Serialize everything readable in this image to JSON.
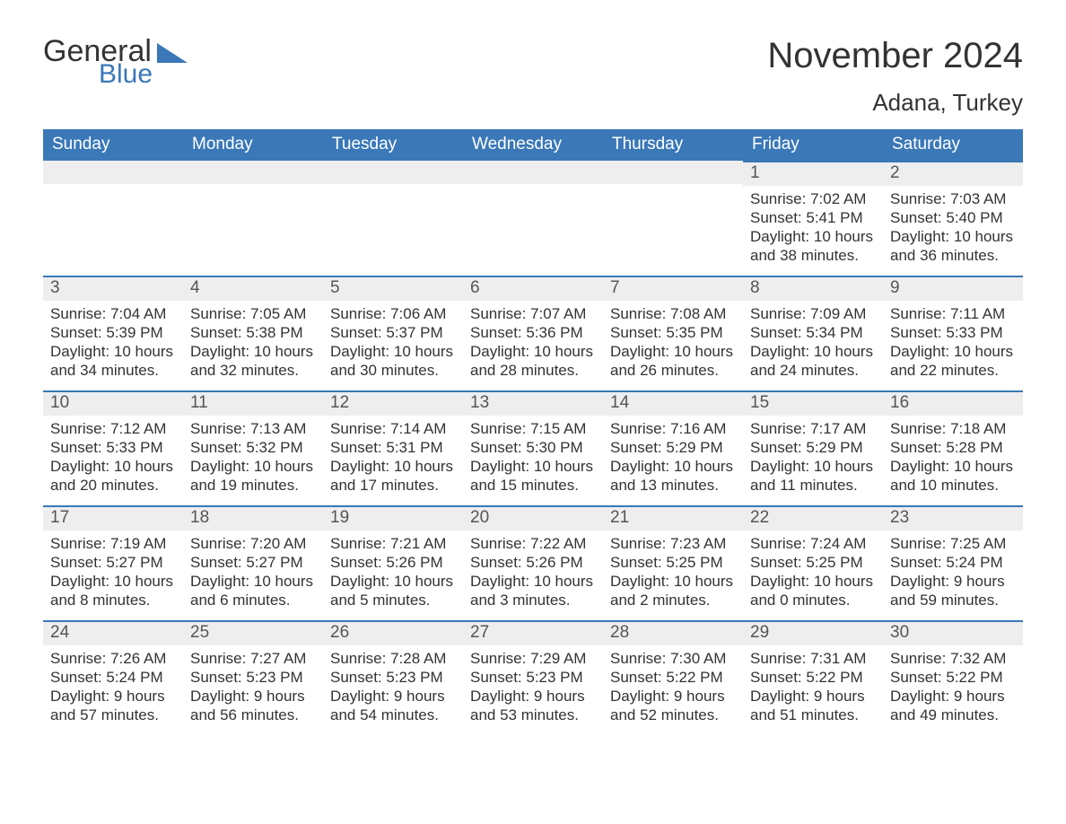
{
  "logo": {
    "word1": "General",
    "word2": "Blue"
  },
  "header": {
    "month_title": "November 2024",
    "location": "Adana, Turkey"
  },
  "colors": {
    "accent": "#3a78b8",
    "header_text": "#ffffff",
    "daybar_bg": "#eeeeee",
    "text": "#333333"
  },
  "weekdays": [
    "Sunday",
    "Monday",
    "Tuesday",
    "Wednesday",
    "Thursday",
    "Friday",
    "Saturday"
  ],
  "calendar": {
    "first_weekday_index": 5,
    "days": [
      {
        "n": "1",
        "sunrise": "Sunrise: 7:02 AM",
        "sunset": "Sunset: 5:41 PM",
        "day1": "Daylight: 10 hours",
        "day2": "and 38 minutes."
      },
      {
        "n": "2",
        "sunrise": "Sunrise: 7:03 AM",
        "sunset": "Sunset: 5:40 PM",
        "day1": "Daylight: 10 hours",
        "day2": "and 36 minutes."
      },
      {
        "n": "3",
        "sunrise": "Sunrise: 7:04 AM",
        "sunset": "Sunset: 5:39 PM",
        "day1": "Daylight: 10 hours",
        "day2": "and 34 minutes."
      },
      {
        "n": "4",
        "sunrise": "Sunrise: 7:05 AM",
        "sunset": "Sunset: 5:38 PM",
        "day1": "Daylight: 10 hours",
        "day2": "and 32 minutes."
      },
      {
        "n": "5",
        "sunrise": "Sunrise: 7:06 AM",
        "sunset": "Sunset: 5:37 PM",
        "day1": "Daylight: 10 hours",
        "day2": "and 30 minutes."
      },
      {
        "n": "6",
        "sunrise": "Sunrise: 7:07 AM",
        "sunset": "Sunset: 5:36 PM",
        "day1": "Daylight: 10 hours",
        "day2": "and 28 minutes."
      },
      {
        "n": "7",
        "sunrise": "Sunrise: 7:08 AM",
        "sunset": "Sunset: 5:35 PM",
        "day1": "Daylight: 10 hours",
        "day2": "and 26 minutes."
      },
      {
        "n": "8",
        "sunrise": "Sunrise: 7:09 AM",
        "sunset": "Sunset: 5:34 PM",
        "day1": "Daylight: 10 hours",
        "day2": "and 24 minutes."
      },
      {
        "n": "9",
        "sunrise": "Sunrise: 7:11 AM",
        "sunset": "Sunset: 5:33 PM",
        "day1": "Daylight: 10 hours",
        "day2": "and 22 minutes."
      },
      {
        "n": "10",
        "sunrise": "Sunrise: 7:12 AM",
        "sunset": "Sunset: 5:33 PM",
        "day1": "Daylight: 10 hours",
        "day2": "and 20 minutes."
      },
      {
        "n": "11",
        "sunrise": "Sunrise: 7:13 AM",
        "sunset": "Sunset: 5:32 PM",
        "day1": "Daylight: 10 hours",
        "day2": "and 19 minutes."
      },
      {
        "n": "12",
        "sunrise": "Sunrise: 7:14 AM",
        "sunset": "Sunset: 5:31 PM",
        "day1": "Daylight: 10 hours",
        "day2": "and 17 minutes."
      },
      {
        "n": "13",
        "sunrise": "Sunrise: 7:15 AM",
        "sunset": "Sunset: 5:30 PM",
        "day1": "Daylight: 10 hours",
        "day2": "and 15 minutes."
      },
      {
        "n": "14",
        "sunrise": "Sunrise: 7:16 AM",
        "sunset": "Sunset: 5:29 PM",
        "day1": "Daylight: 10 hours",
        "day2": "and 13 minutes."
      },
      {
        "n": "15",
        "sunrise": "Sunrise: 7:17 AM",
        "sunset": "Sunset: 5:29 PM",
        "day1": "Daylight: 10 hours",
        "day2": "and 11 minutes."
      },
      {
        "n": "16",
        "sunrise": "Sunrise: 7:18 AM",
        "sunset": "Sunset: 5:28 PM",
        "day1": "Daylight: 10 hours",
        "day2": "and 10 minutes."
      },
      {
        "n": "17",
        "sunrise": "Sunrise: 7:19 AM",
        "sunset": "Sunset: 5:27 PM",
        "day1": "Daylight: 10 hours",
        "day2": "and 8 minutes."
      },
      {
        "n": "18",
        "sunrise": "Sunrise: 7:20 AM",
        "sunset": "Sunset: 5:27 PM",
        "day1": "Daylight: 10 hours",
        "day2": "and 6 minutes."
      },
      {
        "n": "19",
        "sunrise": "Sunrise: 7:21 AM",
        "sunset": "Sunset: 5:26 PM",
        "day1": "Daylight: 10 hours",
        "day2": "and 5 minutes."
      },
      {
        "n": "20",
        "sunrise": "Sunrise: 7:22 AM",
        "sunset": "Sunset: 5:26 PM",
        "day1": "Daylight: 10 hours",
        "day2": "and 3 minutes."
      },
      {
        "n": "21",
        "sunrise": "Sunrise: 7:23 AM",
        "sunset": "Sunset: 5:25 PM",
        "day1": "Daylight: 10 hours",
        "day2": "and 2 minutes."
      },
      {
        "n": "22",
        "sunrise": "Sunrise: 7:24 AM",
        "sunset": "Sunset: 5:25 PM",
        "day1": "Daylight: 10 hours",
        "day2": "and 0 minutes."
      },
      {
        "n": "23",
        "sunrise": "Sunrise: 7:25 AM",
        "sunset": "Sunset: 5:24 PM",
        "day1": "Daylight: 9 hours",
        "day2": "and 59 minutes."
      },
      {
        "n": "24",
        "sunrise": "Sunrise: 7:26 AM",
        "sunset": "Sunset: 5:24 PM",
        "day1": "Daylight: 9 hours",
        "day2": "and 57 minutes."
      },
      {
        "n": "25",
        "sunrise": "Sunrise: 7:27 AM",
        "sunset": "Sunset: 5:23 PM",
        "day1": "Daylight: 9 hours",
        "day2": "and 56 minutes."
      },
      {
        "n": "26",
        "sunrise": "Sunrise: 7:28 AM",
        "sunset": "Sunset: 5:23 PM",
        "day1": "Daylight: 9 hours",
        "day2": "and 54 minutes."
      },
      {
        "n": "27",
        "sunrise": "Sunrise: 7:29 AM",
        "sunset": "Sunset: 5:23 PM",
        "day1": "Daylight: 9 hours",
        "day2": "and 53 minutes."
      },
      {
        "n": "28",
        "sunrise": "Sunrise: 7:30 AM",
        "sunset": "Sunset: 5:22 PM",
        "day1": "Daylight: 9 hours",
        "day2": "and 52 minutes."
      },
      {
        "n": "29",
        "sunrise": "Sunrise: 7:31 AM",
        "sunset": "Sunset: 5:22 PM",
        "day1": "Daylight: 9 hours",
        "day2": "and 51 minutes."
      },
      {
        "n": "30",
        "sunrise": "Sunrise: 7:32 AM",
        "sunset": "Sunset: 5:22 PM",
        "day1": "Daylight: 9 hours",
        "day2": "and 49 minutes."
      }
    ]
  }
}
